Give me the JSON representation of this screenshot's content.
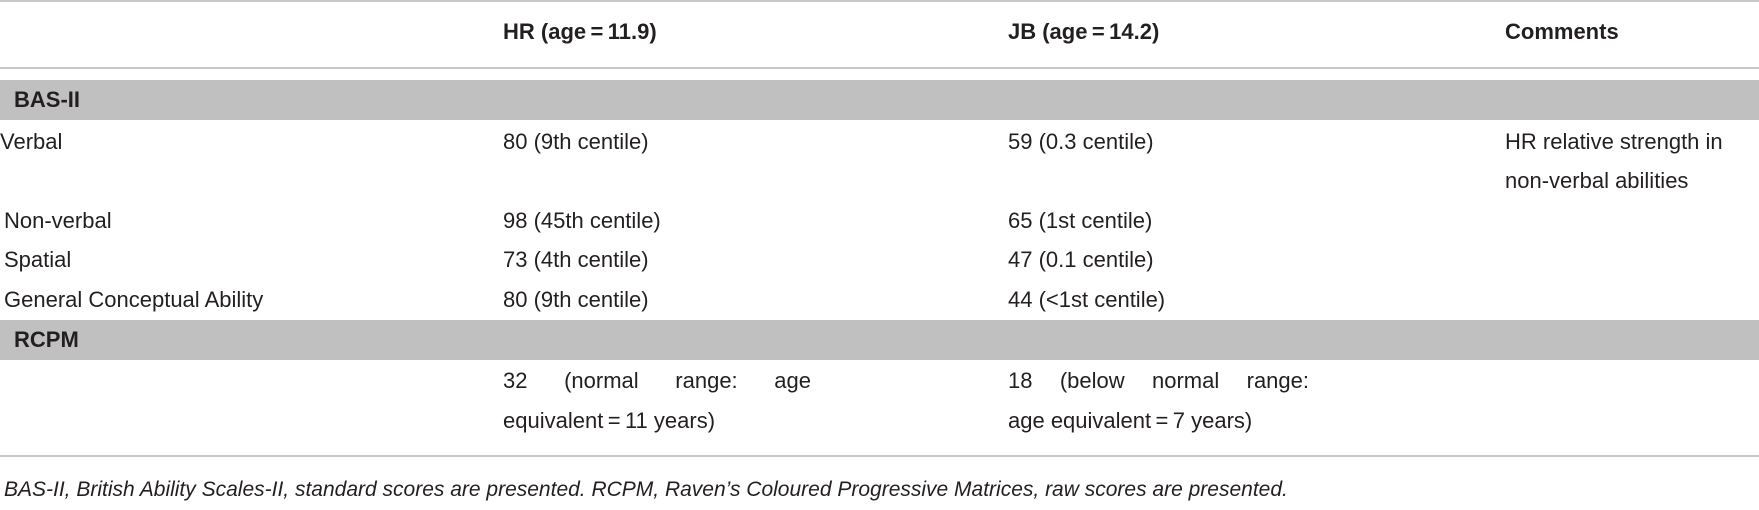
{
  "header": {
    "col1": "",
    "col2": "HR (age = 11.9)",
    "col3": "JB (age = 14.2)",
    "col4": "Comments"
  },
  "sections": [
    {
      "title": "BAS-II",
      "rows": [
        {
          "label": "Verbal",
          "hr": "80 (9th centile)",
          "jb": "59 (0.3 centile)",
          "comment_line1": "HR relative strength in",
          "comment_line2": "non-verbal abilities"
        },
        {
          "label": "Non-verbal",
          "hr": "98 (45th centile)",
          "jb": "65 (1st centile)",
          "comment_line1": "",
          "comment_line2": ""
        },
        {
          "label": "Spatial",
          "hr": "73 (4th centile)",
          "jb": "47 (0.1 centile)",
          "comment_line1": "",
          "comment_line2": ""
        },
        {
          "label": "General Conceptual Ability",
          "hr": "80 (9th centile)",
          "jb": "44 (<1st centile)",
          "comment_line1": "",
          "comment_line2": ""
        }
      ]
    },
    {
      "title": "RCPM",
      "rows": [
        {
          "label": "",
          "hr_line1": "32 (normal range: age",
          "hr_line2": "equivalent = 11 years)",
          "jb_line1": "18 (below normal range:",
          "jb_line2": "age equivalent = 7 years)"
        }
      ]
    }
  ],
  "footnote": "BAS-II, British Ability Scales-II, standard scores are presented. RCPM, Raven’s Coloured Progressive Matrices, raw scores are presented."
}
